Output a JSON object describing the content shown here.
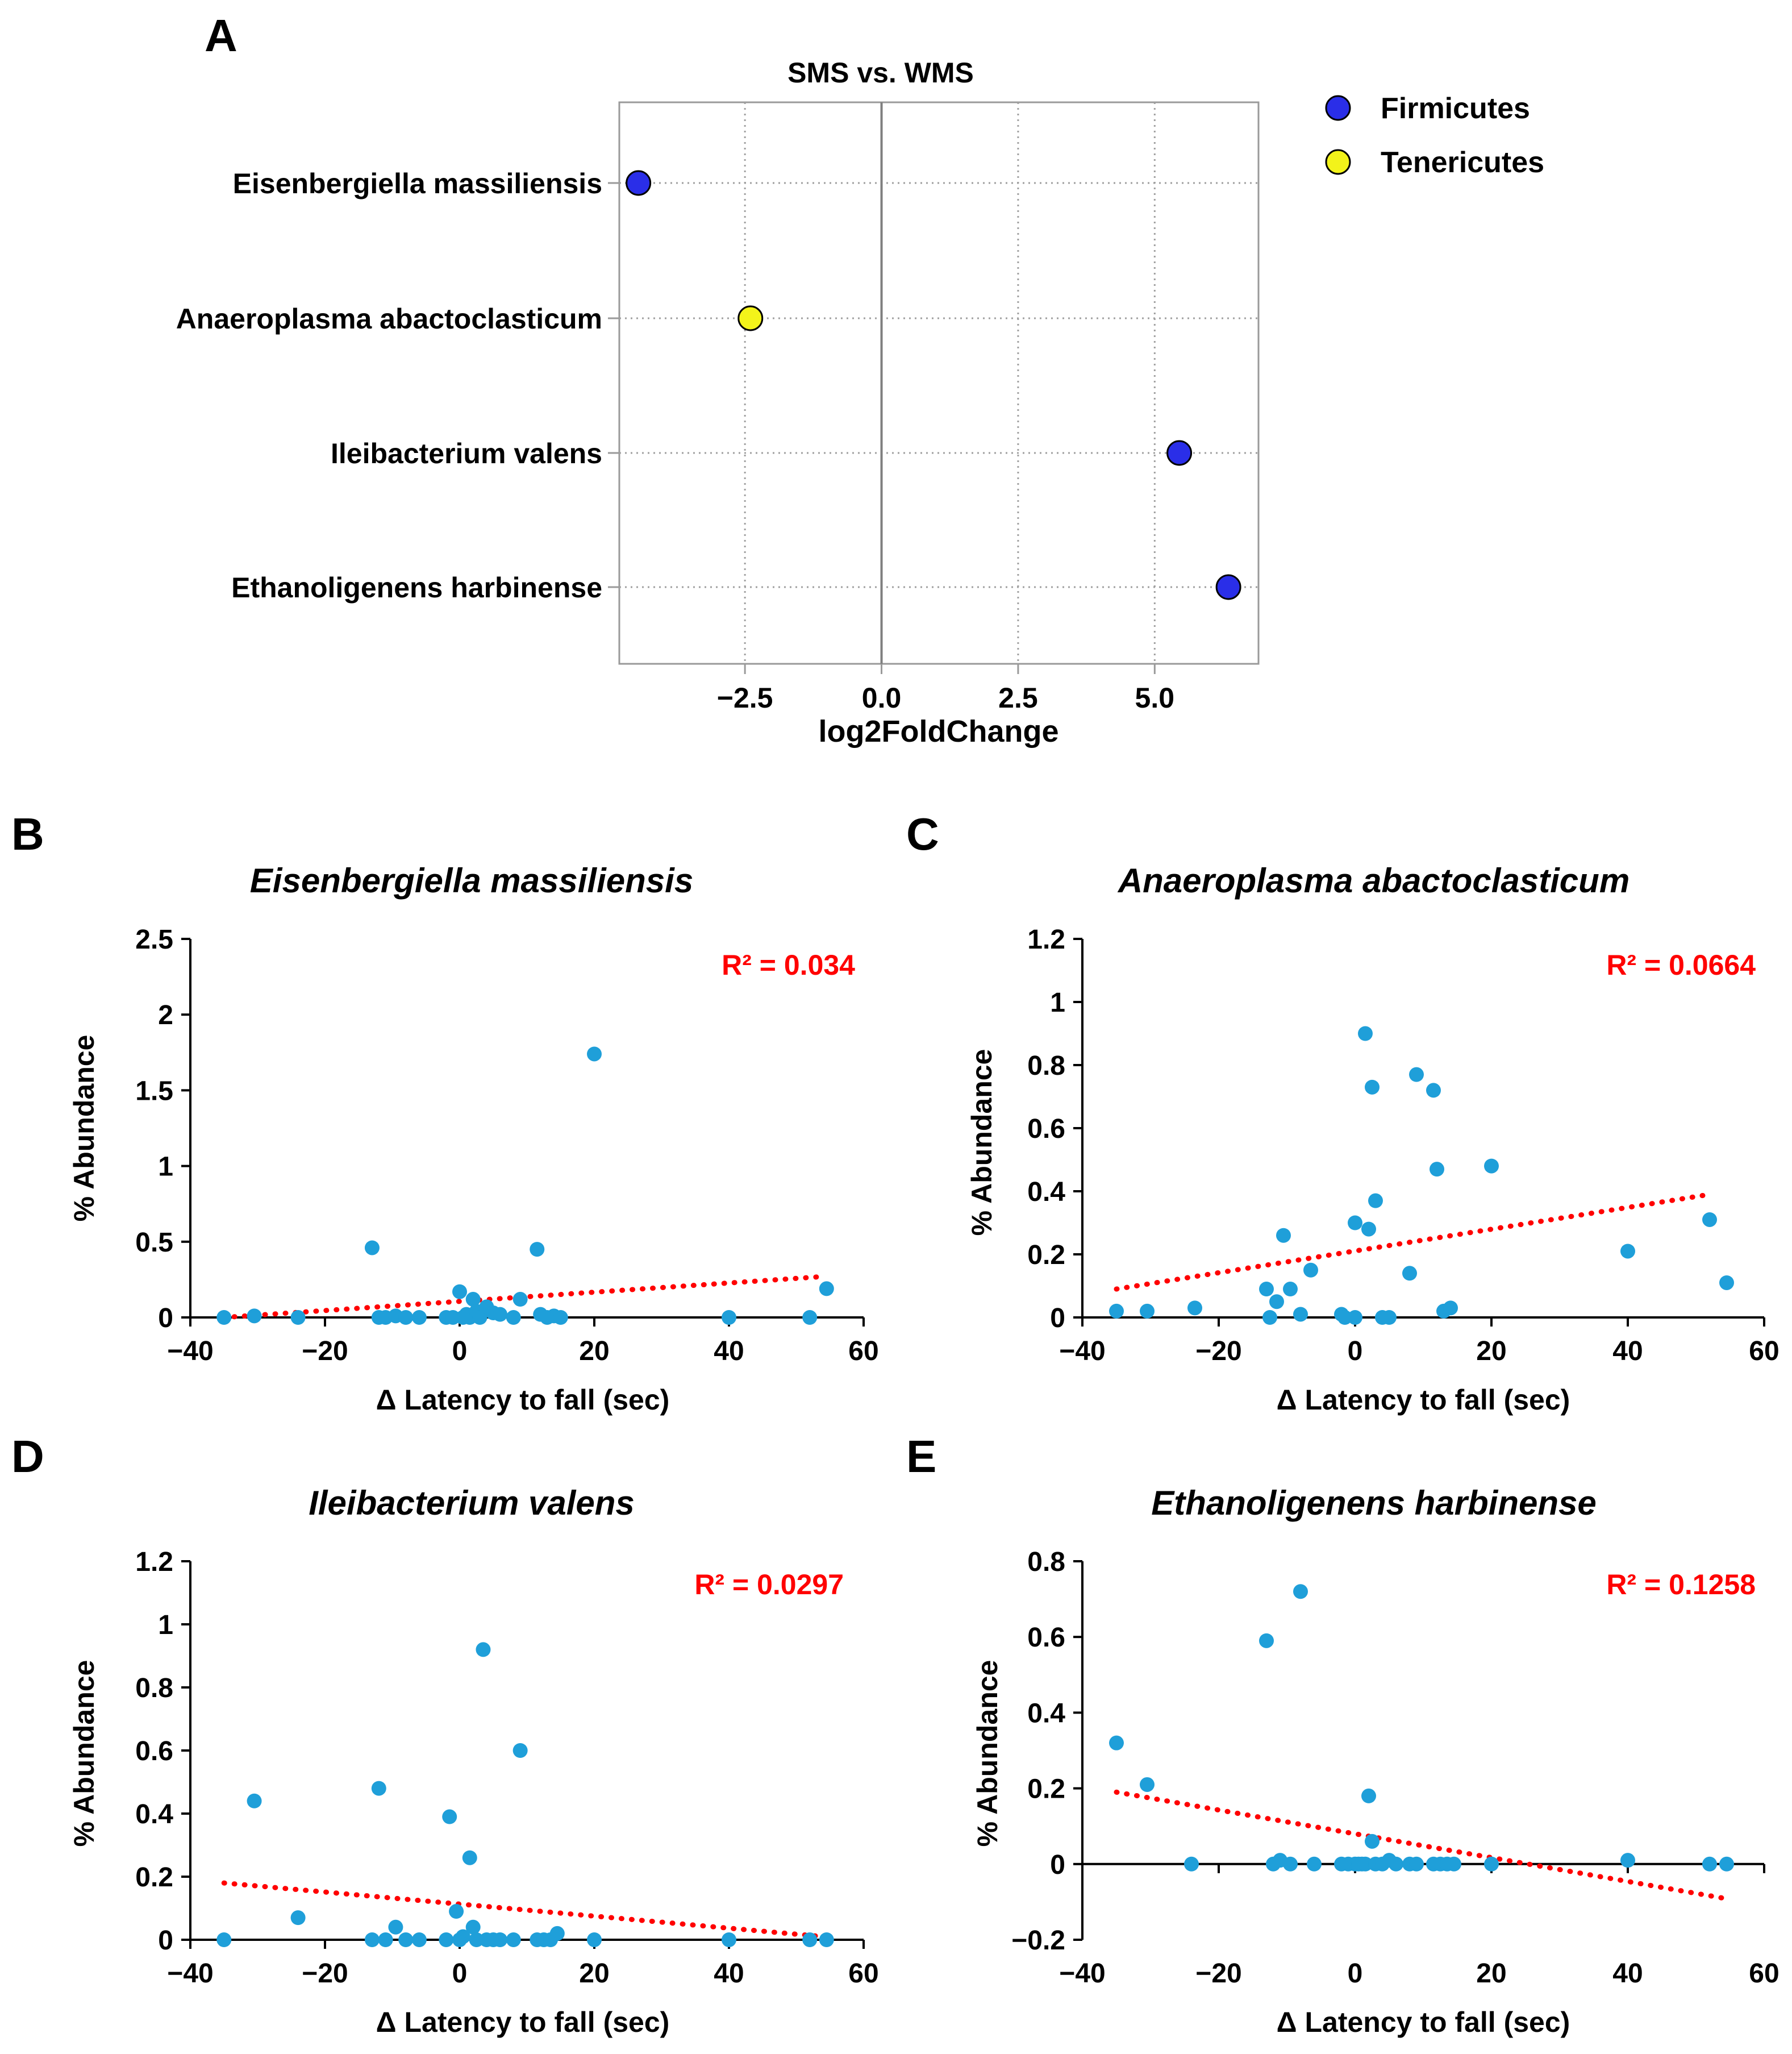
{
  "colors": {
    "firmicutes": "#2a2ee8",
    "tenericutes": "#f3f31a",
    "scatter_point": "#1f9fd9",
    "trendline": "#ff0000",
    "r2_text": "#ff0000",
    "axis": "#000000",
    "grid": "#a0a0a0",
    "zero_line": "#7f7f7f",
    "frame": "#9a9a9a"
  },
  "chart_data": [
    {
      "panel": "A",
      "type": "scatter",
      "title": "SMS vs. WMS",
      "xlabel": "log2FoldChange",
      "ylabel": "",
      "xlim": [
        -4.8,
        6.9
      ],
      "xticks": [
        -2.5,
        0.0,
        2.5,
        5.0
      ],
      "xtick_labels": [
        "−2.5",
        "0.0",
        "2.5",
        "5.0"
      ],
      "grid": true,
      "legend_position": "top-right",
      "legend": [
        {
          "label": "Firmicutes",
          "color_key": "firmicutes"
        },
        {
          "label": "Tenericutes",
          "color_key": "tenericutes"
        }
      ],
      "categories": [
        "Eisenbergiella massiliensis",
        "Anaeroplasma abactoclasticum",
        "Ileibacterium valens",
        "Ethanoligenens harbinense"
      ],
      "points": [
        {
          "category": "Eisenbergiella massiliensis",
          "x": -4.45,
          "phylum": "Firmicutes"
        },
        {
          "category": "Anaeroplasma abactoclasticum",
          "x": -2.4,
          "phylum": "Tenericutes"
        },
        {
          "category": "Ileibacterium valens",
          "x": 5.45,
          "phylum": "Firmicutes"
        },
        {
          "category": "Ethanoligenens harbinense",
          "x": 6.35,
          "phylum": "Firmicutes"
        }
      ]
    },
    {
      "panel": "B",
      "type": "scatter",
      "title": "Eisenbergiella massiliensis",
      "xlabel": "Δ Latency to fall (sec)",
      "ylabel": "% Abundance",
      "xlim": [
        -40,
        60
      ],
      "ylim": [
        0,
        2.5
      ],
      "xticks": [
        -40,
        -20,
        0,
        20,
        40,
        60
      ],
      "xtick_labels": [
        "−40",
        "−20",
        "0",
        "20",
        "40",
        "60"
      ],
      "yticks": [
        0,
        0.5,
        1,
        1.5,
        2,
        2.5
      ],
      "ytick_labels": [
        "0",
        "0.5",
        "1",
        "1.5",
        "2",
        "2.5"
      ],
      "r2_label": "R² = 0.034",
      "trendline": {
        "x": [
          -35,
          54
        ],
        "y": [
          0,
          0.27
        ]
      },
      "points": [
        [
          -35,
          0
        ],
        [
          -30.5,
          0.01
        ],
        [
          -24,
          0
        ],
        [
          -13,
          0.46
        ],
        [
          -12,
          0
        ],
        [
          -11,
          0
        ],
        [
          -9.5,
          0.01
        ],
        [
          -8,
          0
        ],
        [
          -6,
          0
        ],
        [
          -2,
          0
        ],
        [
          -1,
          0
        ],
        [
          0,
          0.17
        ],
        [
          0.5,
          0
        ],
        [
          1,
          0.02
        ],
        [
          1.5,
          0
        ],
        [
          2,
          0.12
        ],
        [
          2.5,
          0.04
        ],
        [
          3,
          0
        ],
        [
          4,
          0.07
        ],
        [
          5,
          0.03
        ],
        [
          6,
          0.02
        ],
        [
          8,
          0
        ],
        [
          9,
          0.12
        ],
        [
          11.5,
          0.45
        ],
        [
          12,
          0.02
        ],
        [
          13,
          0
        ],
        [
          14,
          0.01
        ],
        [
          15,
          0
        ],
        [
          20,
          1.74
        ],
        [
          40,
          0
        ],
        [
          52,
          0
        ],
        [
          54.5,
          0.19
        ]
      ]
    },
    {
      "panel": "C",
      "type": "scatter",
      "title": "Anaeroplasma abactoclasticum",
      "xlabel": "Δ Latency to fall (sec)",
      "ylabel": "% Abundance",
      "xlim": [
        -40,
        60
      ],
      "ylim": [
        0,
        1.2
      ],
      "xticks": [
        -40,
        -20,
        0,
        20,
        40,
        60
      ],
      "xtick_labels": [
        "−40",
        "−20",
        "0",
        "20",
        "40",
        "60"
      ],
      "yticks": [
        0,
        0.2,
        0.4,
        0.6,
        0.8,
        1,
        1.2
      ],
      "ytick_labels": [
        "0",
        "0.2",
        "0.4",
        "0.6",
        "0.8",
        "1",
        "1.2"
      ],
      "r2_label": "R² = 0.0664",
      "trendline": {
        "x": [
          -35,
          52
        ],
        "y": [
          0.09,
          0.39
        ]
      },
      "points": [
        [
          -35,
          0.02
        ],
        [
          -30.5,
          0.02
        ],
        [
          -23.5,
          0.03
        ],
        [
          -13,
          0.09
        ],
        [
          -12.5,
          0
        ],
        [
          -11.5,
          0.05
        ],
        [
          -10.5,
          0.26
        ],
        [
          -9.5,
          0.09
        ],
        [
          -8,
          0.01
        ],
        [
          -6.5,
          0.15
        ],
        [
          -2,
          0.01
        ],
        [
          -1.5,
          0
        ],
        [
          0,
          0
        ],
        [
          0,
          0.3
        ],
        [
          1.5,
          0.9
        ],
        [
          2,
          0.28
        ],
        [
          2.5,
          0.73
        ],
        [
          3,
          0.37
        ],
        [
          4,
          0
        ],
        [
          5,
          0
        ],
        [
          8,
          0.14
        ],
        [
          9,
          0.77
        ],
        [
          11.5,
          0.72
        ],
        [
          12,
          0.47
        ],
        [
          13,
          0.02
        ],
        [
          14,
          0.03
        ],
        [
          20,
          0.48
        ],
        [
          40,
          0.21
        ],
        [
          52,
          0.31
        ],
        [
          54.5,
          0.11
        ]
      ]
    },
    {
      "panel": "D",
      "type": "scatter",
      "title": "Ileibacterium valens",
      "xlabel": "Δ Latency to fall (sec)",
      "ylabel": "% Abundance",
      "xlim": [
        -40,
        60
      ],
      "ylim": [
        0,
        1.2
      ],
      "xticks": [
        -40,
        -20,
        0,
        20,
        40,
        60
      ],
      "xtick_labels": [
        "−40",
        "−20",
        "0",
        "20",
        "40",
        "60"
      ],
      "yticks": [
        0,
        0.2,
        0.4,
        0.6,
        0.8,
        1,
        1.2
      ],
      "ytick_labels": [
        "0",
        "0.2",
        "0.4",
        "0.6",
        "0.8",
        "1",
        "1.2"
      ],
      "r2_label": "R² = 0.0297",
      "trendline": {
        "x": [
          -35,
          54
        ],
        "y": [
          0.18,
          0.01
        ]
      },
      "points": [
        [
          -35,
          0
        ],
        [
          -30.5,
          0.44
        ],
        [
          -24,
          0.07
        ],
        [
          -13,
          0
        ],
        [
          -12,
          0.48
        ],
        [
          -11,
          0
        ],
        [
          -9.5,
          0.04
        ],
        [
          -8,
          0
        ],
        [
          -6,
          0
        ],
        [
          -2,
          0
        ],
        [
          -1.5,
          0.39
        ],
        [
          -0.5,
          0.09
        ],
        [
          0,
          0
        ],
        [
          0.5,
          0.01
        ],
        [
          1.5,
          0.26
        ],
        [
          2,
          0.04
        ],
        [
          2.5,
          0
        ],
        [
          3.5,
          0.92
        ],
        [
          4,
          0
        ],
        [
          5,
          0
        ],
        [
          6,
          0
        ],
        [
          8,
          0
        ],
        [
          9,
          0.6
        ],
        [
          11.5,
          0
        ],
        [
          12.5,
          0
        ],
        [
          13.5,
          0
        ],
        [
          14.5,
          0.02
        ],
        [
          20,
          0
        ],
        [
          40,
          0
        ],
        [
          52,
          0
        ],
        [
          54.5,
          0
        ]
      ]
    },
    {
      "panel": "E",
      "type": "scatter",
      "title": "Ethanoligenens harbinense",
      "xlabel": "Δ Latency to fall (sec)",
      "ylabel": "% Abundance",
      "xlim": [
        -40,
        60
      ],
      "ylim": [
        -0.2,
        0.8
      ],
      "xticks": [
        -40,
        -20,
        0,
        20,
        40,
        60
      ],
      "xtick_labels": [
        "−40",
        "−20",
        "0",
        "20",
        "40",
        "60"
      ],
      "yticks": [
        -0.2,
        0,
        0.2,
        0.4,
        0.6,
        0.8
      ],
      "ytick_labels": [
        "−0.2",
        "0",
        "0.2",
        "0.4",
        "0.6",
        "0.8"
      ],
      "r2_label": "R² = 0.1258",
      "trendline": {
        "x": [
          -35,
          54
        ],
        "y": [
          0.19,
          -0.09
        ]
      },
      "points": [
        [
          -35,
          0.32
        ],
        [
          -30.5,
          0.21
        ],
        [
          -24,
          0
        ],
        [
          -13,
          0.59
        ],
        [
          -12,
          0
        ],
        [
          -11,
          0.01
        ],
        [
          -9.5,
          0
        ],
        [
          -8,
          0.72
        ],
        [
          -6,
          0
        ],
        [
          -2,
          0
        ],
        [
          -1,
          0
        ],
        [
          0,
          0
        ],
        [
          0.5,
          0
        ],
        [
          1,
          0
        ],
        [
          1.5,
          0
        ],
        [
          2,
          0.18
        ],
        [
          2.5,
          0.06
        ],
        [
          3,
          0
        ],
        [
          4,
          0
        ],
        [
          5,
          0.01
        ],
        [
          6,
          0
        ],
        [
          8,
          0
        ],
        [
          9,
          0
        ],
        [
          11.5,
          0
        ],
        [
          12.5,
          0
        ],
        [
          13.5,
          0
        ],
        [
          14.5,
          0
        ],
        [
          20,
          0
        ],
        [
          40,
          0.01
        ],
        [
          52,
          0
        ],
        [
          54.5,
          0
        ]
      ]
    }
  ],
  "panel_labels": [
    "A",
    "B",
    "C",
    "D",
    "E"
  ]
}
